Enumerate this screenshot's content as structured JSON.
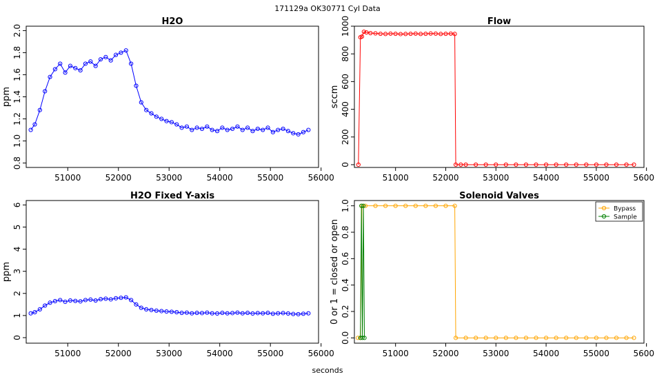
{
  "figure": {
    "header": "171129a    OK30771    Cyl Data",
    "xlabel": "seconds"
  },
  "colors": {
    "blue": "#0000ff",
    "red": "#ff0000",
    "orange": "#ffa500",
    "green": "#007f00",
    "axis": "#000000"
  },
  "chart_data": [
    {
      "id": "h2o",
      "type": "line",
      "title": "H2O",
      "ylabel": "ppm",
      "xlim": [
        50180,
        55950
      ],
      "ylim": [
        0.76,
        2.04
      ],
      "xticks": [
        51000,
        52000,
        53000,
        54000,
        55000,
        56000
      ],
      "yticks": [
        0.8,
        1.0,
        1.2,
        1.4,
        1.6,
        1.8,
        2.0
      ],
      "ytick_labels": [
        "0.8",
        "1.0",
        "1.2",
        "1.4",
        "1.6",
        "1.8",
        "2.0"
      ],
      "series": [
        {
          "color": "blue",
          "markers": "open-circle",
          "x": [
            50270,
            50350,
            50450,
            50550,
            50650,
            50750,
            50850,
            50950,
            51050,
            51150,
            51250,
            51350,
            51450,
            51550,
            51650,
            51750,
            51850,
            51950,
            52050,
            52150,
            52250,
            52350,
            52450,
            52550,
            52650,
            52750,
            52850,
            52950,
            53050,
            53150,
            53250,
            53350,
            53450,
            53550,
            53650,
            53750,
            53850,
            53950,
            54050,
            54150,
            54250,
            54350,
            54450,
            54550,
            54650,
            54750,
            54850,
            54950,
            55050,
            55150,
            55250,
            55350,
            55450,
            55550,
            55650,
            55750
          ],
          "y": [
            1.1,
            1.15,
            1.28,
            1.45,
            1.58,
            1.65,
            1.7,
            1.62,
            1.68,
            1.66,
            1.64,
            1.7,
            1.72,
            1.68,
            1.74,
            1.76,
            1.73,
            1.78,
            1.8,
            1.82,
            1.7,
            1.5,
            1.35,
            1.28,
            1.25,
            1.22,
            1.2,
            1.18,
            1.17,
            1.15,
            1.12,
            1.13,
            1.1,
            1.12,
            1.11,
            1.13,
            1.1,
            1.09,
            1.12,
            1.1,
            1.11,
            1.13,
            1.1,
            1.12,
            1.09,
            1.11,
            1.1,
            1.12,
            1.08,
            1.1,
            1.11,
            1.09,
            1.07,
            1.06,
            1.08,
            1.1
          ]
        }
      ]
    },
    {
      "id": "flow",
      "type": "line",
      "title": "Flow",
      "ylabel": "sccm",
      "xlim": [
        50180,
        55950
      ],
      "ylim": [
        -20,
        1000
      ],
      "xticks": [
        51000,
        52000,
        53000,
        54000,
        55000,
        56000
      ],
      "yticks": [
        0,
        200,
        400,
        600,
        800,
        1000
      ],
      "ytick_labels": [
        "0",
        "200",
        "400",
        "600",
        "800",
        "1000"
      ],
      "series": [
        {
          "color": "red",
          "markers": "open-circle",
          "x": [
            50260,
            50300,
            50330,
            50370,
            50420,
            50500,
            50600,
            50700,
            50800,
            50900,
            51000,
            51100,
            51200,
            51300,
            51400,
            51500,
            51600,
            51700,
            51800,
            51900,
            52000,
            52100,
            52180,
            52200,
            52300,
            52400,
            52600,
            52800,
            53000,
            53200,
            53400,
            53600,
            53800,
            54000,
            54200,
            54400,
            54600,
            54800,
            55000,
            55200,
            55400,
            55600,
            55750
          ],
          "y": [
            0,
            920,
            925,
            960,
            955,
            950,
            948,
            945,
            944,
            946,
            945,
            943,
            944,
            945,
            946,
            944,
            945,
            947,
            946,
            944,
            945,
            946,
            944,
            0,
            0,
            0,
            0,
            0,
            0,
            0,
            0,
            0,
            0,
            0,
            0,
            0,
            0,
            0,
            0,
            0,
            0,
            0,
            0
          ]
        }
      ]
    },
    {
      "id": "h2o-fixed",
      "type": "line",
      "title": "H2O Fixed Y-axis",
      "ylabel": "ppm",
      "xlim": [
        50180,
        55950
      ],
      "ylim": [
        -0.25,
        6.2
      ],
      "xticks": [
        51000,
        52000,
        53000,
        54000,
        55000,
        56000
      ],
      "yticks": [
        0,
        1,
        2,
        3,
        4,
        5,
        6
      ],
      "ytick_labels": [
        "0",
        "1",
        "2",
        "3",
        "4",
        "5",
        "6"
      ],
      "series": [
        {
          "color": "blue",
          "markers": "open-circle",
          "x": [
            50270,
            50350,
            50450,
            50550,
            50650,
            50750,
            50850,
            50950,
            51050,
            51150,
            51250,
            51350,
            51450,
            51550,
            51650,
            51750,
            51850,
            51950,
            52050,
            52150,
            52250,
            52350,
            52450,
            52550,
            52650,
            52750,
            52850,
            52950,
            53050,
            53150,
            53250,
            53350,
            53450,
            53550,
            53650,
            53750,
            53850,
            53950,
            54050,
            54150,
            54250,
            54350,
            54450,
            54550,
            54650,
            54750,
            54850,
            54950,
            55050,
            55150,
            55250,
            55350,
            55450,
            55550,
            55650,
            55750
          ],
          "y": [
            1.1,
            1.15,
            1.28,
            1.45,
            1.58,
            1.65,
            1.7,
            1.62,
            1.68,
            1.66,
            1.64,
            1.7,
            1.72,
            1.68,
            1.74,
            1.76,
            1.73,
            1.78,
            1.8,
            1.82,
            1.7,
            1.5,
            1.35,
            1.28,
            1.25,
            1.22,
            1.2,
            1.18,
            1.17,
            1.15,
            1.12,
            1.13,
            1.1,
            1.12,
            1.11,
            1.13,
            1.1,
            1.09,
            1.12,
            1.1,
            1.11,
            1.13,
            1.1,
            1.12,
            1.09,
            1.11,
            1.1,
            1.12,
            1.08,
            1.1,
            1.11,
            1.09,
            1.07,
            1.06,
            1.08,
            1.1
          ]
        }
      ]
    },
    {
      "id": "solenoid",
      "type": "line",
      "title": "Solenoid Valves",
      "ylabel": "0 or 1 = closed or open",
      "xlim": [
        50180,
        55950
      ],
      "ylim": [
        -0.04,
        1.04
      ],
      "xticks": [
        51000,
        52000,
        53000,
        54000,
        55000,
        56000
      ],
      "yticks": [
        0.0,
        0.2,
        0.4,
        0.6,
        0.8,
        1.0
      ],
      "ytick_labels": [
        "0.0",
        "0.2",
        "0.4",
        "0.6",
        "0.8",
        "1.0"
      ],
      "legend": {
        "position": "top-right",
        "entries": [
          "Bypass",
          "Sample"
        ]
      },
      "series": [
        {
          "name": "Bypass",
          "color": "orange",
          "markers": "open-circle",
          "x": [
            50250,
            50300,
            50330,
            50400,
            50600,
            50800,
            51000,
            51200,
            51400,
            51600,
            51800,
            52000,
            52180,
            52200,
            52400,
            52600,
            52800,
            53000,
            53200,
            53400,
            53600,
            53800,
            54000,
            54200,
            54400,
            54600,
            54800,
            55000,
            55200,
            55400,
            55600,
            55750
          ],
          "y": [
            0,
            0,
            1,
            1,
            1,
            1,
            1,
            1,
            1,
            1,
            1,
            1,
            1,
            0,
            0,
            0,
            0,
            0,
            0,
            0,
            0,
            0,
            0,
            0,
            0,
            0,
            0,
            0,
            0,
            0,
            0,
            0
          ]
        },
        {
          "name": "Sample",
          "color": "green",
          "markers": "open-circle",
          "x": [
            50300,
            50320,
            50340,
            50360,
            50380
          ],
          "y": [
            0,
            1,
            0,
            1,
            0
          ]
        }
      ]
    }
  ]
}
